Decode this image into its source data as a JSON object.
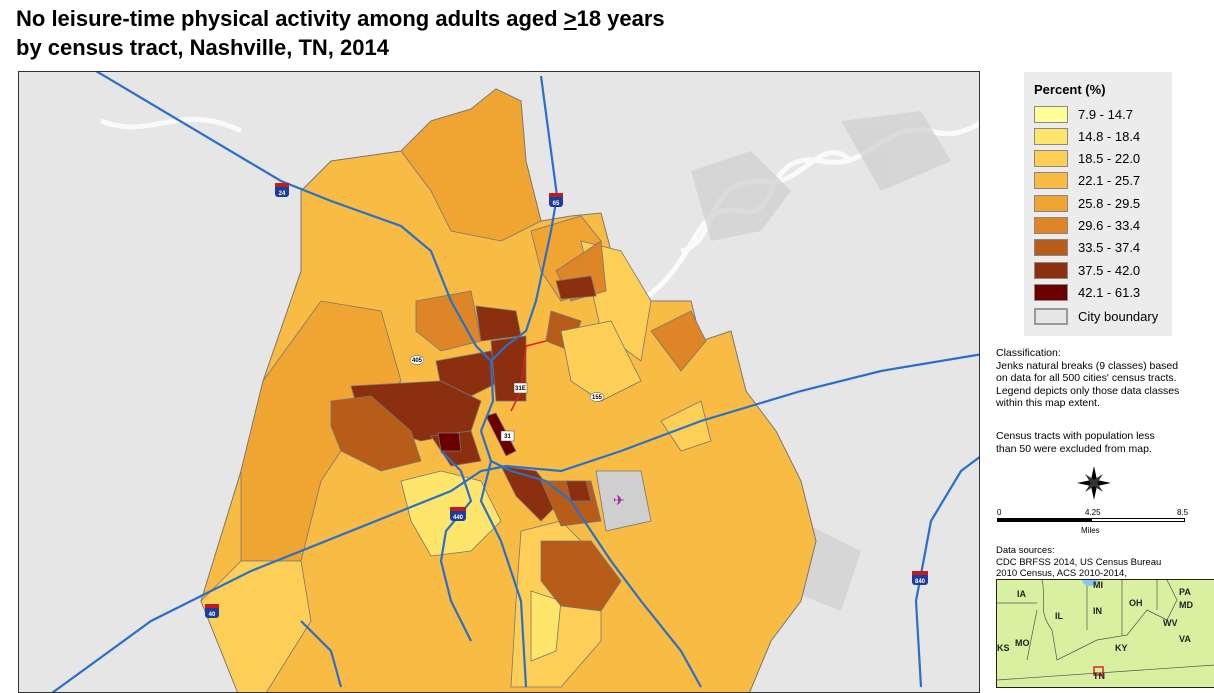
{
  "title": {
    "line1_prefix": "No leisure-time physical activity among adults aged ",
    "line1_ge": ">",
    "line1_suffix": "18 years",
    "line2": "by census tract, Nashville, TN, 2014"
  },
  "legend": {
    "heading": "Percent (%)",
    "classes": [
      {
        "label": "7.9 - 14.7",
        "color": "#ffff99"
      },
      {
        "label": "14.8 - 18.4",
        "color": "#fee56b"
      },
      {
        "label": "18.5 - 22.0",
        "color": "#fdcf56"
      },
      {
        "label": "22.1 - 25.7",
        "color": "#f8bb44"
      },
      {
        "label": "25.8 - 29.5",
        "color": "#f0a532"
      },
      {
        "label": "29.6 - 33.4",
        "color": "#dd8527"
      },
      {
        "label": "33.5 - 37.4",
        "color": "#b85c1a"
      },
      {
        "label": "37.5 - 42.0",
        "color": "#8c2f0e"
      },
      {
        "label": "42.1 - 61.3",
        "color": "#6a0000"
      }
    ],
    "boundary_label": "City boundary"
  },
  "notes": {
    "classification": [
      "Classification:",
      "Jenks natural breaks (9 classes) based",
      "on data for all 500 cities' census tracts.",
      "Legend depicts only those data classes",
      "within this map extent."
    ],
    "exclusion": [
      "Census tracts with population less",
      "than 50 were excluded from map."
    ],
    "sources": [
      "Data sources:",
      "CDC BRFSS 2014, US Census Bureau",
      "2010 Census, ACS 2010-2014,"
    ]
  },
  "scale": {
    "ticks": [
      "0",
      "4.25",
      "8.5"
    ],
    "unit": "Miles"
  },
  "highways": {
    "i24": "24",
    "i65": "65",
    "i40": "40",
    "i440": "440",
    "i840": "840",
    "r405": "405",
    "us31e": "31E",
    "us31": "31",
    "r155": "155"
  },
  "inset_states": [
    "IA",
    "MI",
    "PA",
    "OH",
    "MD",
    "IL",
    "IN",
    "WV",
    "KS",
    "MO",
    "KY",
    "VA",
    "TN"
  ]
}
